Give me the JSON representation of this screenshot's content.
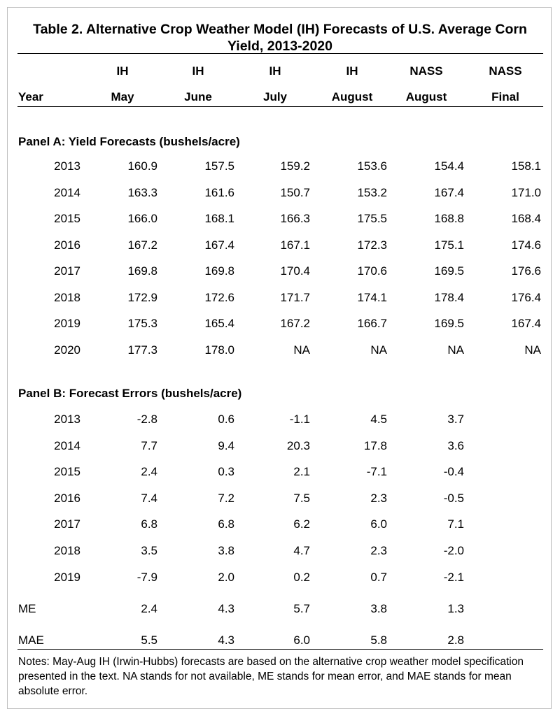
{
  "title": "Table 2.  Alternative Crop Weather Model (IH) Forecasts of U.S. Average Corn Yield, 2013-2020",
  "headers": {
    "year": "Year",
    "top": [
      "IH",
      "IH",
      "IH",
      "IH",
      "NASS",
      "NASS"
    ],
    "bottom": [
      "May",
      "June",
      "July",
      "August",
      "August",
      "Final"
    ]
  },
  "panel_a": {
    "title": "Panel A: Yield Forecasts (bushels/acre)",
    "rows": [
      [
        "2013",
        "160.9",
        "157.5",
        "159.2",
        "153.6",
        "154.4",
        "158.1"
      ],
      [
        "2014",
        "163.3",
        "161.6",
        "150.7",
        "153.2",
        "167.4",
        "171.0"
      ],
      [
        "2015",
        "166.0",
        "168.1",
        "166.3",
        "175.5",
        "168.8",
        "168.4"
      ],
      [
        "2016",
        "167.2",
        "167.4",
        "167.1",
        "172.3",
        "175.1",
        "174.6"
      ],
      [
        "2017",
        "169.8",
        "169.8",
        "170.4",
        "170.6",
        "169.5",
        "176.6"
      ],
      [
        "2018",
        "172.9",
        "172.6",
        "171.7",
        "174.1",
        "178.4",
        "176.4"
      ],
      [
        "2019",
        "175.3",
        "165.4",
        "167.2",
        "166.7",
        "169.5",
        "167.4"
      ],
      [
        "2020",
        "177.3",
        "178.0",
        "NA",
        "NA",
        "NA",
        "NA"
      ]
    ]
  },
  "panel_b": {
    "title": "Panel B: Forecast Errors (bushels/acre)",
    "rows": [
      [
        "2013",
        "-2.8",
        "0.6",
        "-1.1",
        "4.5",
        "3.7"
      ],
      [
        "2014",
        "7.7",
        "9.4",
        "20.3",
        "17.8",
        "3.6"
      ],
      [
        "2015",
        "2.4",
        "0.3",
        "2.1",
        "-7.1",
        "-0.4"
      ],
      [
        "2016",
        "7.4",
        "7.2",
        "7.5",
        "2.3",
        "-0.5"
      ],
      [
        "2017",
        "6.8",
        "6.8",
        "6.2",
        "6.0",
        "7.1"
      ],
      [
        "2018",
        "3.5",
        "3.8",
        "4.7",
        "2.3",
        "-2.0"
      ],
      [
        "2019",
        "-7.9",
        "2.0",
        "0.2",
        "0.7",
        "-2.1"
      ]
    ],
    "summary": [
      [
        "ME",
        "2.4",
        "4.3",
        "5.7",
        "3.8",
        "1.3"
      ],
      [
        "MAE",
        "5.5",
        "4.3",
        "6.0",
        "5.8",
        "2.8"
      ]
    ]
  },
  "notes": "Notes: May-Aug IH (Irwin-Hubbs) forecasts are based on the alternative crop weather model specification presented in the text. NA stands for not available, ME stands for mean error, and MAE stands for mean absolute error."
}
